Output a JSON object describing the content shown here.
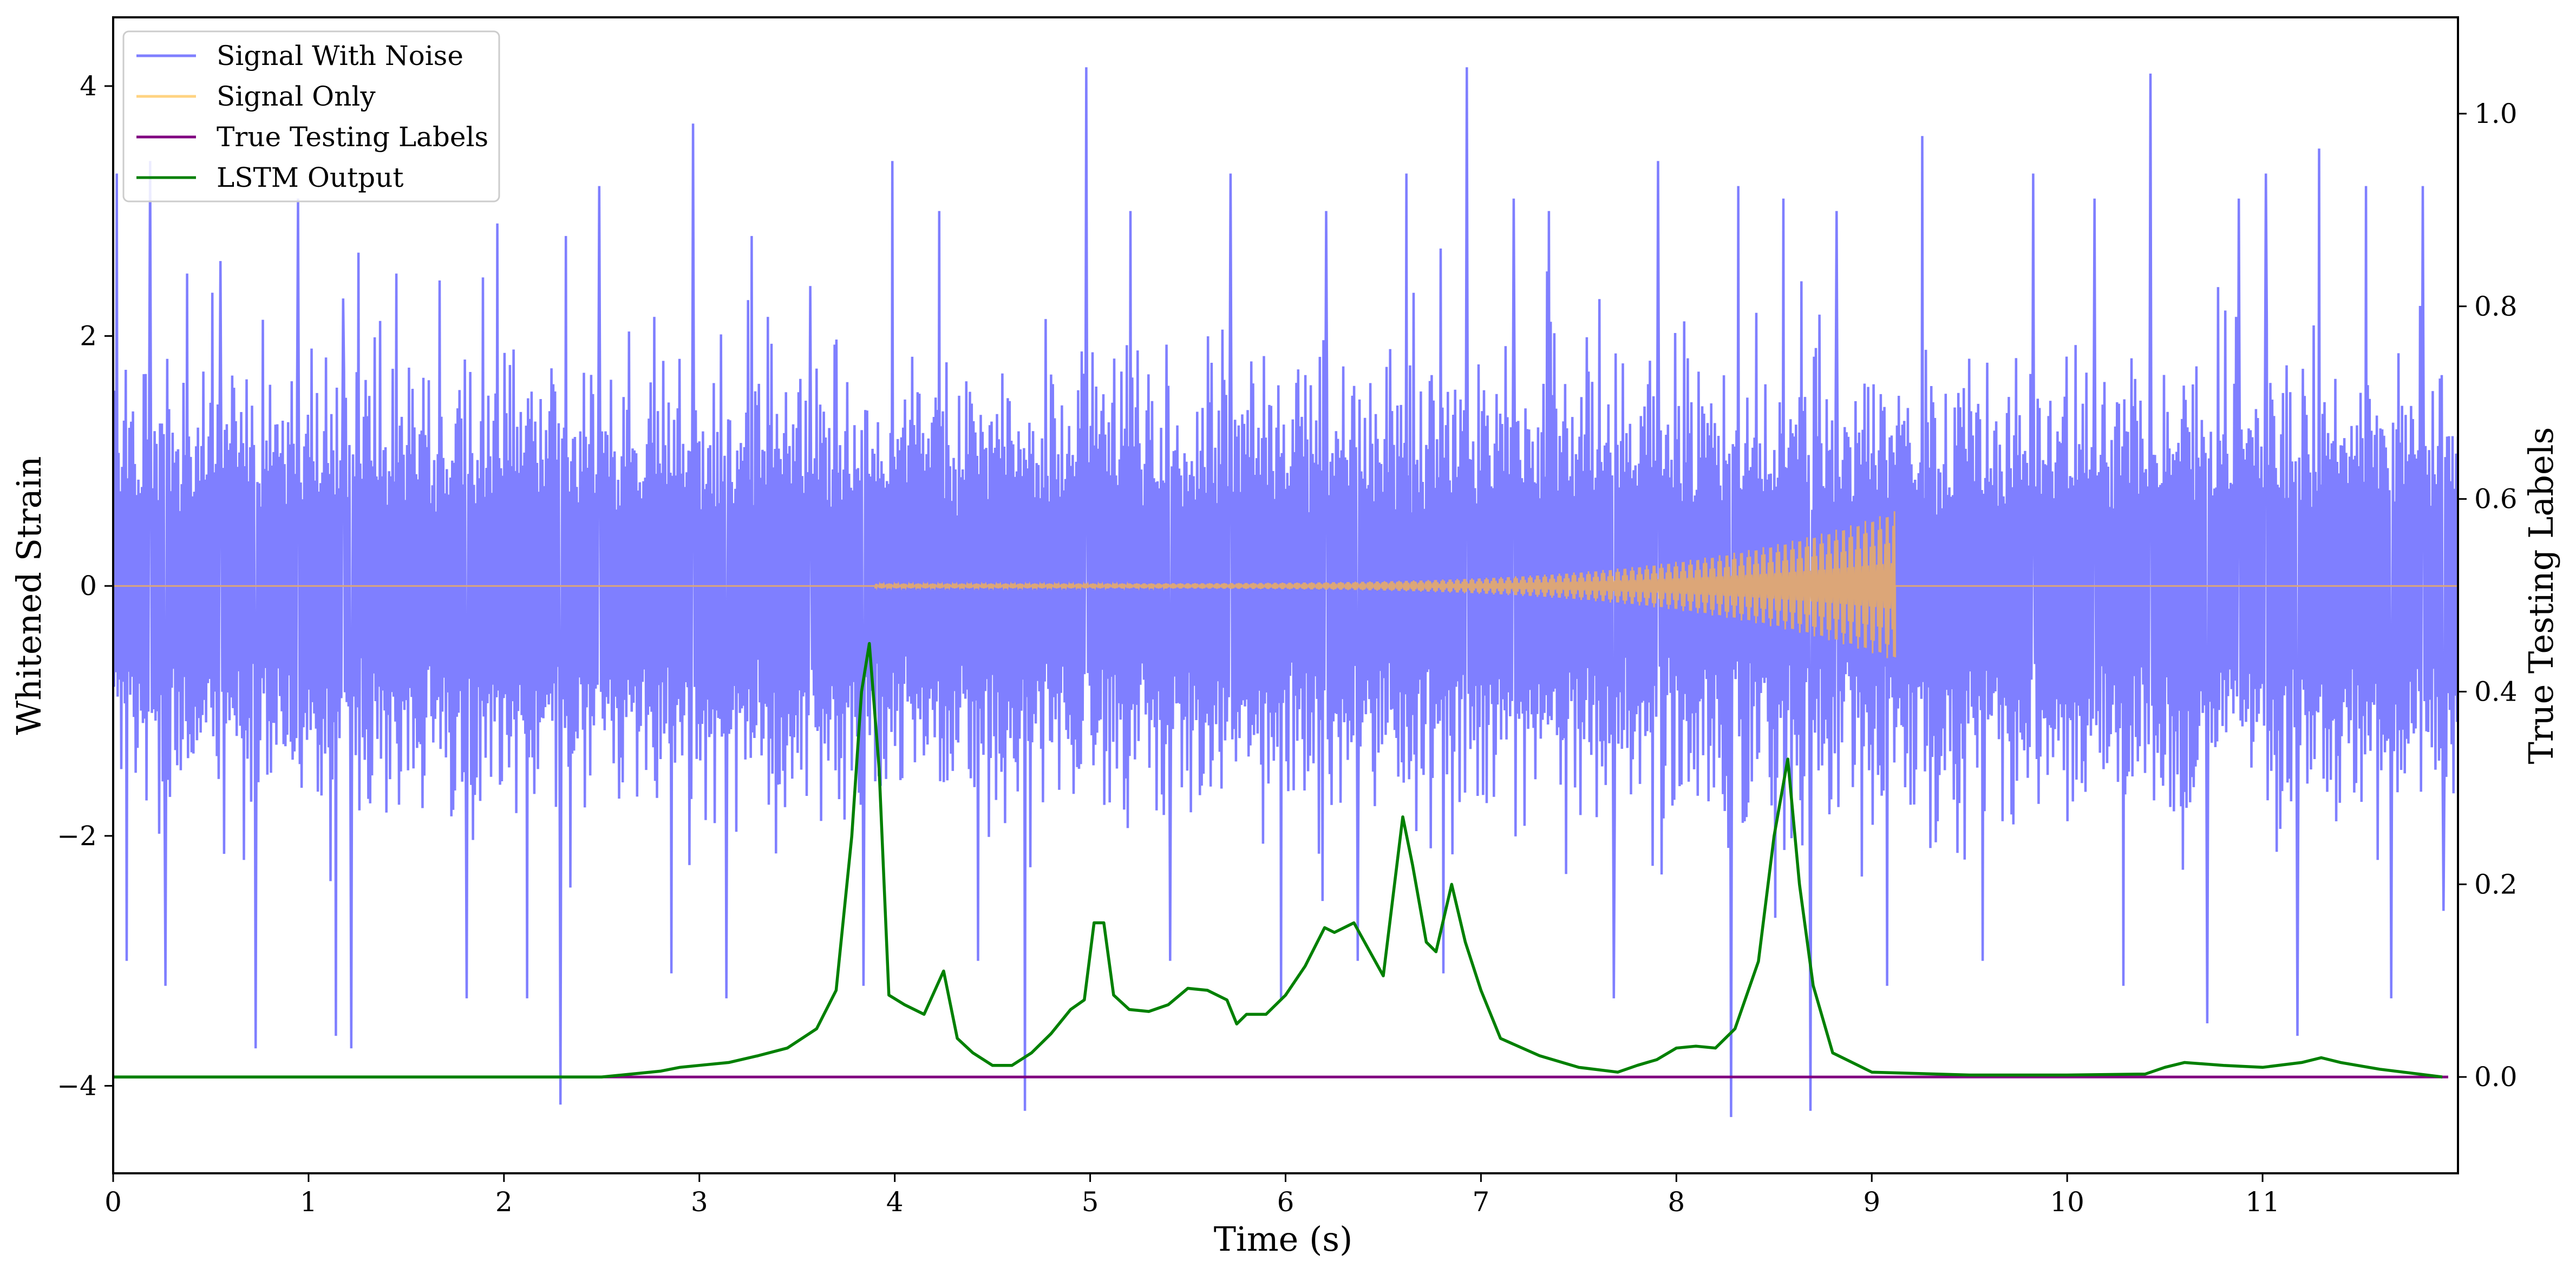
{
  "chart_data": {
    "type": "line",
    "title": "",
    "xlabel": "Time (s)",
    "ylabel_left": "Whitened Strain",
    "ylabel_right": "True Testing Labels",
    "xlim": [
      0,
      12
    ],
    "ylim_left": [
      -4.7,
      4.55
    ],
    "ylim_right": [
      -0.1,
      1.1
    ],
    "x_ticks": [
      0,
      1,
      2,
      3,
      4,
      5,
      6,
      7,
      8,
      9,
      10,
      11
    ],
    "y_ticks_left": [
      -4,
      -2,
      0,
      2,
      4
    ],
    "y_ticks_right": [
      0.0,
      0.2,
      0.4,
      0.6,
      0.8,
      1.0
    ],
    "x_tick_labels": [
      "0",
      "1",
      "2",
      "3",
      "4",
      "5",
      "6",
      "7",
      "8",
      "9",
      "10",
      "11"
    ],
    "y_tick_labels_left": [
      "−4",
      "−2",
      "0",
      "2",
      "4"
    ],
    "y_tick_labels_right": [
      "0.0",
      "0.2",
      "0.4",
      "0.6",
      "0.8",
      "1.0"
    ],
    "grid": false,
    "legend_position": "top-left",
    "series": [
      {
        "name": "Signal With Noise",
        "axis": "left",
        "color": "#7f7fff",
        "description_values": {
          "typical_band": [
            -1.6,
            1.6
          ],
          "spike_points": [
            [
              0.02,
              3.3
            ],
            [
              0.07,
              -3.0
            ],
            [
              0.19,
              3.4
            ],
            [
              0.27,
              -3.2
            ],
            [
              0.38,
              2.5
            ],
            [
              0.55,
              2.6
            ],
            [
              0.73,
              -3.7
            ],
            [
              0.95,
              3.1
            ],
            [
              1.14,
              -3.6
            ],
            [
              1.18,
              2.3
            ],
            [
              1.22,
              -3.7
            ],
            [
              1.45,
              2.5
            ],
            [
              1.81,
              -3.3
            ],
            [
              1.97,
              2.9
            ],
            [
              2.12,
              -3.3
            ],
            [
              2.29,
              -4.15
            ],
            [
              2.32,
              2.8
            ],
            [
              2.49,
              3.2
            ],
            [
              2.86,
              -3.1
            ],
            [
              2.97,
              3.7
            ],
            [
              3.14,
              -3.3
            ],
            [
              3.27,
              2.8
            ],
            [
              3.57,
              2.4
            ],
            [
              3.84,
              -3.2
            ],
            [
              3.99,
              3.4
            ],
            [
              4.23,
              3.0
            ],
            [
              4.43,
              -3.0
            ],
            [
              4.67,
              -4.2
            ],
            [
              4.98,
              4.15
            ],
            [
              5.21,
              3.0
            ],
            [
              5.41,
              -3.0
            ],
            [
              5.72,
              3.3
            ],
            [
              5.98,
              -3.3
            ],
            [
              6.21,
              3.0
            ],
            [
              6.37,
              -3.0
            ],
            [
              6.62,
              3.3
            ],
            [
              6.81,
              -3.1
            ],
            [
              6.93,
              4.15
            ],
            [
              7.17,
              3.1
            ],
            [
              7.35,
              3.0
            ],
            [
              7.68,
              -3.3
            ],
            [
              7.91,
              3.4
            ],
            [
              8.28,
              -4.25
            ],
            [
              8.32,
              3.2
            ],
            [
              8.55,
              3.1
            ],
            [
              8.69,
              -4.2
            ],
            [
              8.82,
              3.0
            ],
            [
              9.08,
              -3.2
            ],
            [
              9.26,
              3.6
            ],
            [
              9.57,
              -3.0
            ],
            [
              9.83,
              3.3
            ],
            [
              10.14,
              3.1
            ],
            [
              10.29,
              -3.2
            ],
            [
              10.43,
              4.1
            ],
            [
              10.72,
              -3.5
            ],
            [
              10.88,
              3.1
            ],
            [
              11.02,
              3.3
            ],
            [
              11.18,
              -3.6
            ],
            [
              11.29,
              3.5
            ],
            [
              11.53,
              3.2
            ],
            [
              11.66,
              -3.3
            ],
            [
              11.82,
              3.2
            ],
            [
              11.93,
              -2.6
            ]
          ]
        }
      },
      {
        "name": "Signal Only",
        "axis": "left",
        "color": "#ffc04c",
        "description_values": {
          "baseline": 0,
          "chirp_start": 3.9,
          "chirp_end": 9.12,
          "peak_amplitude": [
            0.58,
            -0.5
          ]
        }
      },
      {
        "name": "True Testing Labels",
        "axis": "right",
        "color": "#800080",
        "x": [
          0,
          12
        ],
        "y": [
          0.0,
          0.0
        ]
      },
      {
        "name": "LSTM Output",
        "axis": "right",
        "color": "#008000",
        "x": [
          0.0,
          0.5,
          1.0,
          1.5,
          2.0,
          2.5,
          2.7,
          2.8,
          2.9,
          3.0,
          3.15,
          3.3,
          3.45,
          3.6,
          3.7,
          3.78,
          3.83,
          3.87,
          3.92,
          3.97,
          4.05,
          4.15,
          4.25,
          4.32,
          4.4,
          4.5,
          4.6,
          4.7,
          4.8,
          4.9,
          4.97,
          5.02,
          5.07,
          5.12,
          5.2,
          5.3,
          5.4,
          5.5,
          5.6,
          5.7,
          5.75,
          5.8,
          5.9,
          6.0,
          6.1,
          6.2,
          6.25,
          6.35,
          6.5,
          6.6,
          6.65,
          6.72,
          6.77,
          6.85,
          6.92,
          7.0,
          7.1,
          7.3,
          7.5,
          7.7,
          7.8,
          7.9,
          8.0,
          8.1,
          8.2,
          8.3,
          8.42,
          8.5,
          8.57,
          8.63,
          8.7,
          8.8,
          9.0,
          9.5,
          10.0,
          10.4,
          10.5,
          10.6,
          10.8,
          11.0,
          11.2,
          11.3,
          11.4,
          11.6,
          11.8,
          11.92
        ],
        "y": [
          0.0,
          0.0,
          0.0,
          0.0,
          0.0,
          0.0,
          0.004,
          0.006,
          0.01,
          0.012,
          0.015,
          0.022,
          0.03,
          0.05,
          0.09,
          0.25,
          0.4,
          0.45,
          0.32,
          0.085,
          0.075,
          0.065,
          0.11,
          0.04,
          0.025,
          0.012,
          0.012,
          0.025,
          0.045,
          0.07,
          0.08,
          0.16,
          0.16,
          0.085,
          0.07,
          0.068,
          0.075,
          0.092,
          0.09,
          0.08,
          0.055,
          0.065,
          0.065,
          0.085,
          0.115,
          0.155,
          0.15,
          0.16,
          0.105,
          0.27,
          0.22,
          0.14,
          0.13,
          0.2,
          0.14,
          0.09,
          0.04,
          0.022,
          0.01,
          0.005,
          0.012,
          0.018,
          0.03,
          0.032,
          0.03,
          0.05,
          0.12,
          0.25,
          0.33,
          0.2,
          0.095,
          0.025,
          0.005,
          0.002,
          0.002,
          0.003,
          0.01,
          0.015,
          0.012,
          0.01,
          0.015,
          0.02,
          0.015,
          0.008,
          0.003,
          0.0
        ]
      }
    ]
  }
}
